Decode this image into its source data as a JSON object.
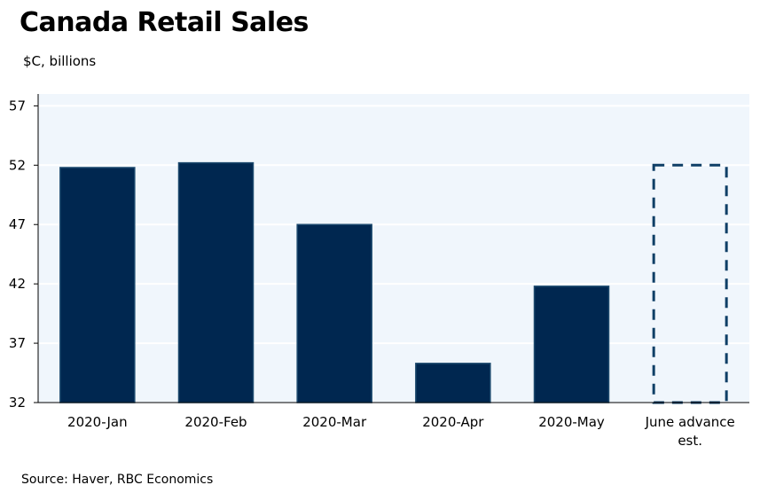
{
  "page": {
    "title": "Canada Retail Sales",
    "subtitle": "$C, billions",
    "source": "Source: Haver, RBC Economics"
  },
  "colors": {
    "bar_fill": "#002750",
    "bar_stroke": "#1d4a6e",
    "dashed_stroke": "#0f3f66",
    "plot_background": "#f0f6fc",
    "gridline": "#ffffff",
    "axis": "#000000"
  },
  "chart_data": {
    "type": "bar",
    "title": "Canada Retail Sales",
    "subtitle": "$C, billions",
    "xlabel": "",
    "ylabel": "$C, billions",
    "ylim": [
      32,
      58
    ],
    "yticks": [
      32,
      37,
      42,
      47,
      52,
      57
    ],
    "grid": true,
    "legend": "none",
    "categories": [
      "2020-Jan",
      "2020-Feb",
      "2020-Mar",
      "2020-Apr",
      "2020-May",
      "June advance est."
    ],
    "category_label_lines": [
      [
        "2020-Jan"
      ],
      [
        "2020-Feb"
      ],
      [
        "2020-Mar"
      ],
      [
        "2020-Apr"
      ],
      [
        "2020-May"
      ],
      [
        "June advance",
        "est."
      ]
    ],
    "values": [
      51.8,
      52.2,
      47.0,
      35.3,
      41.8,
      52.0
    ],
    "estimate_flags": [
      false,
      false,
      false,
      false,
      false,
      true
    ]
  }
}
